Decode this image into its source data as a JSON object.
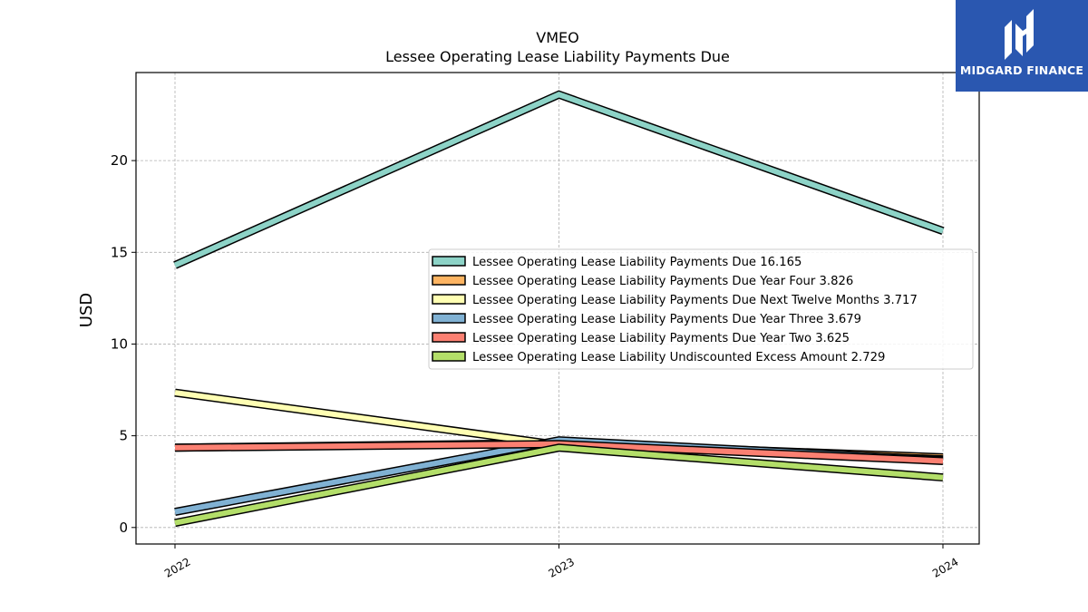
{
  "logo": {
    "text": "MIDGARD FINANCE",
    "icon": "midgard-logo-icon",
    "background": "#2a57b0"
  },
  "chart_data": {
    "type": "line",
    "title": "VMEO",
    "subtitle": "Lessee Operating Lease Liability Payments Due",
    "xlabel": "",
    "ylabel": "USD",
    "categories": [
      "2022",
      "2023",
      "2024"
    ],
    "ylim": [
      -0.9,
      24.8
    ],
    "yticks": [
      0,
      5,
      10,
      15,
      20
    ],
    "grid": true,
    "legend_position": "center-right",
    "series": [
      {
        "name": "Lessee Operating Lease Liability Payments Due",
        "legend_value": "16.165",
        "color": "#8dd3c7",
        "values": [
          14.3,
          23.6,
          16.165
        ]
      },
      {
        "name": "Lessee Operating Lease Liability Payments Due Year Four",
        "legend_value": "3.826",
        "color": "#fdb462",
        "values": [
          4.35,
          4.6,
          3.826
        ]
      },
      {
        "name": "Lessee Operating Lease Liability Payments Due Next Twelve Months",
        "legend_value": "3.717",
        "color": "#ffffb3",
        "values": [
          7.35,
          4.5,
          3.717
        ]
      },
      {
        "name": "Lessee Operating Lease Liability Payments Due Year Three",
        "legend_value": "3.679",
        "color": "#80b1d3",
        "values": [
          0.85,
          4.75,
          3.679
        ]
      },
      {
        "name": "Lessee Operating Lease Liability Payments Due Year Two",
        "legend_value": "3.625",
        "color": "#fb8072",
        "values": [
          4.35,
          4.55,
          3.625
        ]
      },
      {
        "name": "Lessee Operating Lease Liability Undiscounted Excess Amount",
        "legend_value": "2.729",
        "color": "#b3de69",
        "values": [
          0.25,
          4.35,
          2.729
        ]
      }
    ]
  }
}
